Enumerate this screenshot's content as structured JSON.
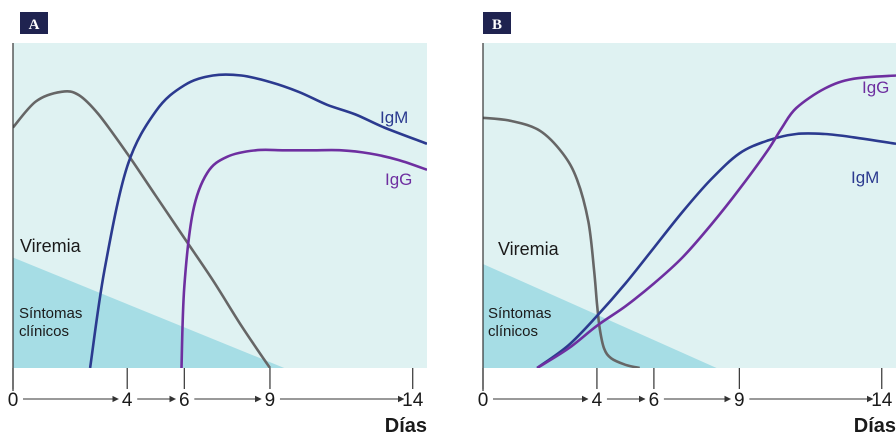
{
  "colors": {
    "background": "#dff2f2",
    "symptoms_fill": "#a6dde5",
    "viremia_line": "#666666",
    "igm_line": "#2b3a8f",
    "igg_line": "#6e2fa0",
    "panel_letter_bg": "#1f2350",
    "axis": "#333333"
  },
  "chart_data": [
    {
      "panel": "A",
      "type": "line",
      "xlabel": "Días",
      "xticks": [
        "0",
        "4",
        "6",
        "9",
        "14"
      ],
      "xlim": [
        0,
        14.5
      ],
      "ylim": [
        0,
        100
      ],
      "annotations": {
        "viremia": "Viremia",
        "symptoms": "Síntomas clínicos"
      },
      "symptoms_area": {
        "x": [
          0,
          9.5
        ],
        "y_at_start": 34,
        "y_at_end": 0
      },
      "series": [
        {
          "name": "Viremia",
          "label_shown": false,
          "color_key": "viremia_line",
          "x": [
            0,
            0.8,
            1.7,
            2.3,
            3,
            4,
            5,
            6,
            7,
            8,
            9
          ],
          "y": [
            74,
            82,
            85,
            84,
            78,
            66,
            53,
            40,
            27,
            13,
            0
          ]
        },
        {
          "name": "IgM",
          "label_shown": true,
          "color_key": "igm_line",
          "x": [
            2.7,
            3.2,
            4,
            5,
            6,
            7,
            8,
            9,
            10,
            11,
            12,
            13,
            14.5
          ],
          "y": [
            0,
            30,
            62,
            79,
            87,
            90,
            90,
            88,
            85,
            81,
            78,
            74,
            69
          ]
        },
        {
          "name": "IgG",
          "label_shown": true,
          "color_key": "igg_line",
          "x": [
            5.9,
            6,
            6.3,
            6.8,
            7.5,
            8.5,
            9.5,
            10.5,
            11.5,
            12.5,
            13.5,
            14.5
          ],
          "y": [
            0,
            25,
            48,
            60,
            65,
            67,
            67,
            67,
            67,
            66,
            64,
            61
          ]
        }
      ]
    },
    {
      "panel": "B",
      "type": "line",
      "xlabel": "Días",
      "xticks": [
        "0",
        "4",
        "6",
        "9",
        "14"
      ],
      "xlim": [
        0,
        14.5
      ],
      "ylim": [
        0,
        100
      ],
      "annotations": {
        "viremia": "Viremia",
        "symptoms": "Síntomas clínicos"
      },
      "symptoms_area": {
        "x": [
          0,
          8.2
        ],
        "y_at_start": 32,
        "y_at_end": 0
      },
      "series": [
        {
          "name": "Viremia",
          "label_shown": false,
          "color_key": "viremia_line",
          "x": [
            0,
            1,
            2,
            2.8,
            3.3,
            3.7,
            3.9,
            4.0,
            4.1,
            4.25,
            4.5,
            5,
            5.5
          ],
          "y": [
            77,
            76,
            73,
            66,
            58,
            45,
            30,
            20,
            12,
            6,
            3,
            1,
            0
          ]
        },
        {
          "name": "IgM",
          "label_shown": true,
          "color_key": "igm_line",
          "x": [
            1.9,
            3,
            4,
            5,
            6,
            7,
            8,
            9,
            10,
            11,
            12,
            13,
            14.5
          ],
          "y": [
            0,
            7,
            16,
            26,
            37,
            48,
            58,
            66,
            70,
            72,
            72,
            71,
            69
          ]
        },
        {
          "name": "IgG",
          "label_shown": true,
          "color_key": "igg_line",
          "x": [
            1.9,
            3,
            4,
            5,
            6,
            7,
            8,
            9,
            10,
            10.5,
            11,
            12,
            13,
            14.5
          ],
          "y": [
            0,
            6,
            13,
            19,
            26,
            34,
            44,
            55,
            67,
            74,
            80,
            86,
            89,
            90
          ]
        }
      ]
    }
  ]
}
